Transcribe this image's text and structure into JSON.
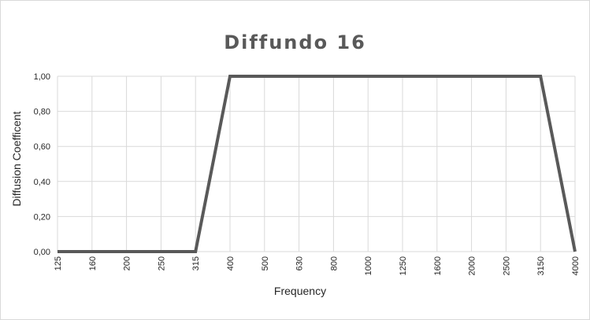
{
  "chart_data": {
    "type": "line",
    "title": "Diffundo 16",
    "xlabel": "Frequency",
    "ylabel": "Diffusion Coefficent",
    "categories": [
      "125",
      "160",
      "200",
      "250",
      "315",
      "400",
      "500",
      "630",
      "800",
      "1000",
      "1250",
      "1600",
      "2000",
      "2500",
      "3150",
      "4000"
    ],
    "series": [
      {
        "values": [
          0,
          0,
          0,
          0,
          0,
          1,
          1,
          1,
          1,
          1,
          1,
          1,
          1,
          1,
          1,
          0
        ]
      }
    ],
    "y_ticks": [
      "0,00",
      "0,20",
      "0,40",
      "0,60",
      "0,80",
      "1,00"
    ],
    "ylim": [
      0,
      1
    ],
    "grid": true,
    "line_color": "#595959",
    "grid_color": "#d9d9d9"
  }
}
